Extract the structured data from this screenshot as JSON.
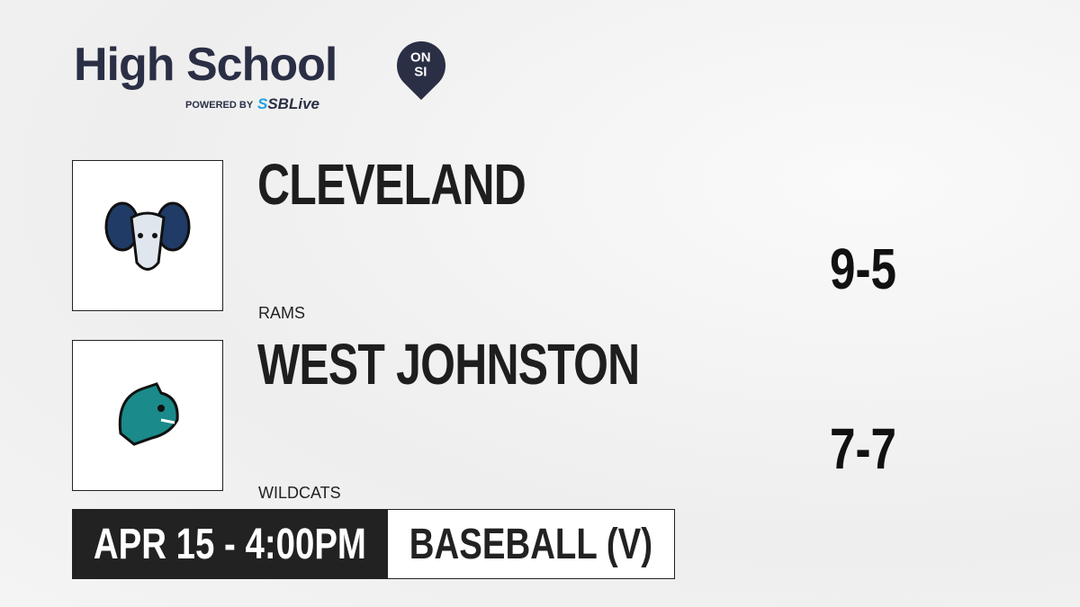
{
  "brand": {
    "title": "High School",
    "badge_top": "ON",
    "badge_bottom": "SI",
    "powered": "POWERED BY",
    "partner_a": "S",
    "partner_b": "SBLive"
  },
  "teams": [
    {
      "name": "CLEVELAND",
      "mascot": "RAMS",
      "record": "9-5",
      "logo_icon": "ram-icon",
      "color": "#1f3b66"
    },
    {
      "name": "WEST JOHNSTON",
      "mascot": "WILDCATS",
      "record": "7-7",
      "logo_icon": "wildcat-icon",
      "color": "#1a8a8a"
    }
  ],
  "game": {
    "datetime": "APR 15 - 4:00PM",
    "sport": "BASEBALL (V)"
  }
}
